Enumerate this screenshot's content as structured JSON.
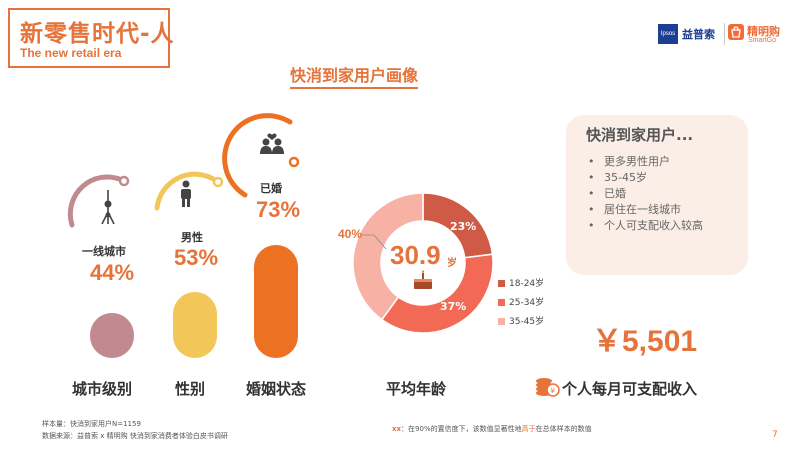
{
  "header": {
    "title_cn": "新零售时代-人",
    "title_en": "The new retail era",
    "logo_ipsos": "Ipsos",
    "logo_ipsos_cn": "益普索",
    "logo_sg_cn": "精明购",
    "logo_sg_en": "SmartGo"
  },
  "subtitle": "快消到家用户画像",
  "chart_data": [
    {
      "type": "bar",
      "categories": [
        "城市级别",
        "性别",
        "婚姻状态"
      ],
      "series": [
        {
          "values": [
            44,
            53,
            73
          ],
          "labels": [
            "一线城市",
            "男性",
            "已婚"
          ],
          "value_text": [
            "44%",
            "53%",
            "73%"
          ],
          "colors": [
            "#c08a8f",
            "#f3c65a",
            "#ec7123"
          ]
        }
      ],
      "ylim": [
        0,
        100
      ]
    },
    {
      "type": "pie",
      "title": "平均年龄",
      "categories": [
        "18-24岁",
        "25-34岁",
        "35-45岁"
      ],
      "values": [
        23,
        37,
        40
      ],
      "value_text": [
        "23%",
        "37%",
        "40%"
      ],
      "colors": [
        "#cf5a45",
        "#f26a55",
        "#f8b2a5"
      ],
      "center_value": "30.9",
      "center_unit": "岁",
      "legend_position": "right"
    }
  ],
  "panel": {
    "title": "快消到家用户...",
    "bullet_char": "•",
    "items": [
      "更多男性用户",
      "35-45岁",
      "已婚",
      "居住在一线城市",
      "个人可支配收入较高"
    ]
  },
  "income": {
    "value": "￥5,501",
    "label": "个人每月可支配收入"
  },
  "footer": {
    "sample": "样本量：快消到家用户N=1159",
    "source": "数据来源：益普索 x 精明购 快消到家消费者体验白皮书调研",
    "note_prefix": "xx",
    "note_a": "：在90%的置信度下，该数值显著性地",
    "note_highlight": "高于",
    "note_b": "在总体样本的数值",
    "page": "7"
  }
}
